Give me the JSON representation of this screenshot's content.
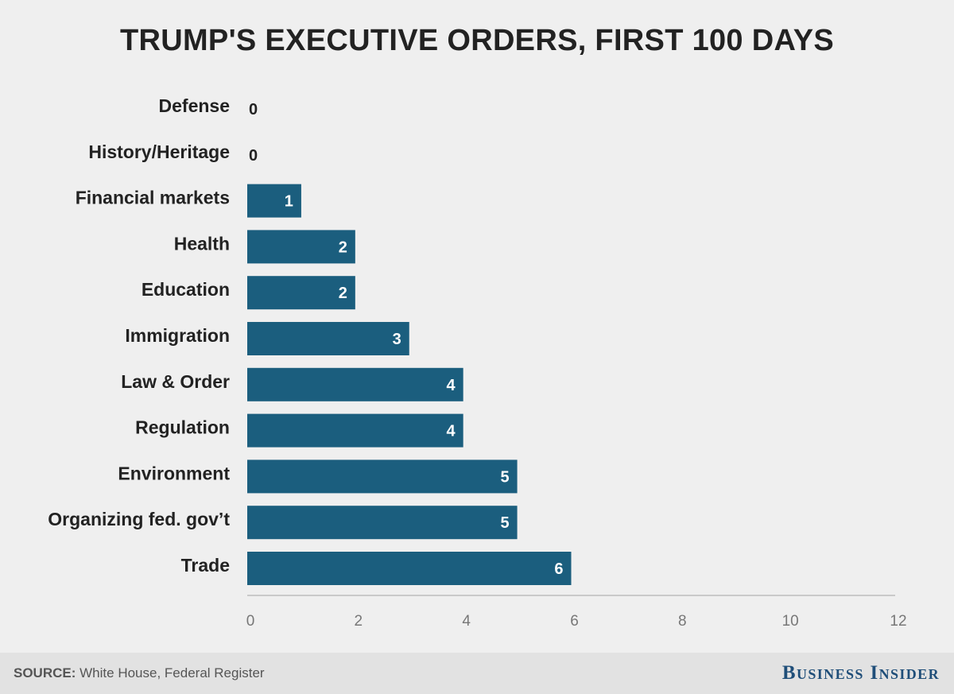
{
  "chart_data": {
    "type": "bar",
    "orientation": "horizontal",
    "title": "TRUMP'S EXECUTIVE ORDERS, FIRST 100 DAYS",
    "categories": [
      "Defense",
      "History/Heritage",
      "Financial markets",
      "Health",
      "Education",
      "Immigration",
      "Law & Order",
      "Regulation",
      "Environment",
      "Organizing fed. gov’t",
      "Trade"
    ],
    "values": [
      0,
      0,
      1,
      2,
      2,
      3,
      4,
      4,
      5,
      5,
      6
    ],
    "xlim": [
      0,
      12
    ],
    "xticks": [
      0,
      2,
      4,
      6,
      8,
      10,
      12
    ],
    "xlabel": "",
    "ylabel": "",
    "bar_color": "#1b5e7e",
    "grid": false
  },
  "footer": {
    "source_label": "SOURCE:",
    "source_text": "White House, Federal Register",
    "brand": "Business Insider",
    "brand_color": "#1f4e79"
  }
}
